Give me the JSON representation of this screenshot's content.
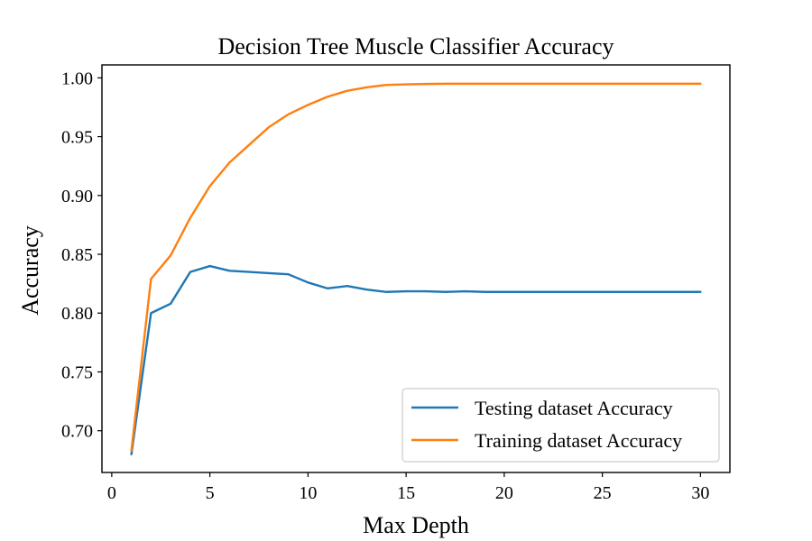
{
  "chart_data": {
    "type": "line",
    "title": "Decision Tree Muscle Classifier Accuracy",
    "xlabel": "Max Depth",
    "ylabel": "Accuracy",
    "xlim": [
      -0.5,
      31.5
    ],
    "ylim": [
      0.6645,
      1.011
    ],
    "xticks": [
      0,
      5,
      10,
      15,
      20,
      25,
      30
    ],
    "yticks": [
      0.7,
      0.75,
      0.8,
      0.85,
      0.9,
      0.95,
      1.0
    ],
    "xtick_labels": [
      "0",
      "5",
      "10",
      "15",
      "20",
      "25",
      "30"
    ],
    "ytick_labels": [
      "0.70",
      "0.75",
      "0.80",
      "0.85",
      "0.90",
      "0.95",
      "1.00"
    ],
    "grid": false,
    "legend_position": "lower-right",
    "x": [
      1,
      2,
      3,
      4,
      5,
      6,
      7,
      8,
      9,
      10,
      11,
      12,
      13,
      14,
      15,
      16,
      17,
      18,
      19,
      20,
      21,
      22,
      23,
      24,
      25,
      26,
      27,
      28,
      29,
      30
    ],
    "series": [
      {
        "name": "Testing dataset Accuracy",
        "color": "#1f77b4",
        "values": [
          0.68,
          0.8,
          0.808,
          0.835,
          0.84,
          0.836,
          0.835,
          0.834,
          0.833,
          0.826,
          0.821,
          0.823,
          0.82,
          0.818,
          0.8185,
          0.8185,
          0.818,
          0.8185,
          0.818,
          0.818,
          0.818,
          0.818,
          0.818,
          0.818,
          0.818,
          0.818,
          0.818,
          0.818,
          0.818,
          0.818
        ]
      },
      {
        "name": "Training dataset Accuracy",
        "color": "#ff7f0e",
        "values": [
          0.683,
          0.829,
          0.849,
          0.881,
          0.908,
          0.928,
          0.943,
          0.958,
          0.969,
          0.977,
          0.984,
          0.989,
          0.992,
          0.994,
          0.9945,
          0.9948,
          0.995,
          0.995,
          0.995,
          0.995,
          0.995,
          0.995,
          0.995,
          0.995,
          0.995,
          0.995,
          0.995,
          0.995,
          0.995,
          0.995
        ]
      }
    ]
  }
}
